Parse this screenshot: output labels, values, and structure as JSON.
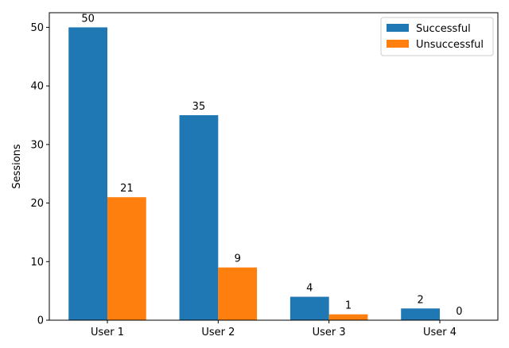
{
  "chart_data": {
    "type": "bar",
    "categories": [
      "User 1",
      "User 2",
      "User 3",
      "User 4"
    ],
    "series": [
      {
        "name": "Successful",
        "values": [
          50,
          35,
          4,
          2
        ],
        "color": "#1f77b4"
      },
      {
        "name": "Unsuccessful",
        "values": [
          21,
          9,
          1,
          0
        ],
        "color": "#ff7f0e"
      }
    ],
    "title": "",
    "xlabel": "",
    "ylabel": "Sessions",
    "ylim": [
      0,
      52.5
    ],
    "yticks": [
      0,
      10,
      20,
      30,
      40,
      50
    ],
    "grid": false,
    "legend_position": "top-right"
  }
}
